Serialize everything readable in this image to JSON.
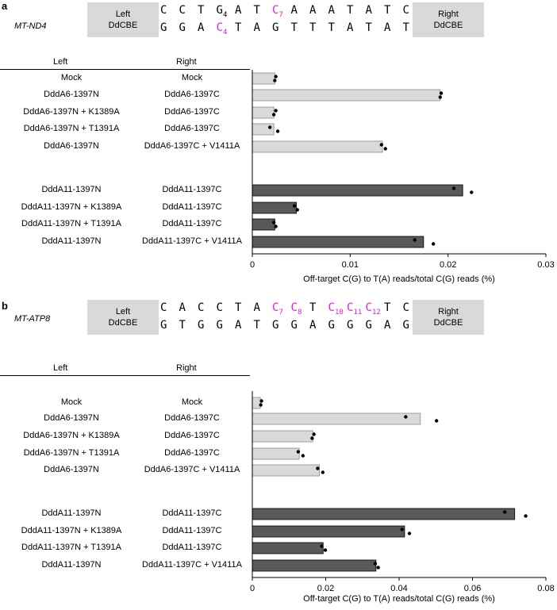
{
  "colors": {
    "highlight": "#e020e0",
    "light_bar": "#d9d9d9",
    "dark_bar": "#595959",
    "box": "#d9d9d9"
  },
  "panel_a": {
    "label": "a",
    "gene": "MT-ND4",
    "left_box": [
      "Left",
      "DdCBE"
    ],
    "right_box": [
      "Right",
      "DdCBE"
    ],
    "top_strand": [
      {
        "b": "C",
        "s": "",
        "h": false
      },
      {
        "b": "C",
        "s": "",
        "h": false
      },
      {
        "b": "T",
        "s": "",
        "h": false
      },
      {
        "b": "G",
        "s": "4",
        "h": false
      },
      {
        "b": "A",
        "s": "",
        "h": false
      },
      {
        "b": "T",
        "s": "",
        "h": false
      },
      {
        "b": "C",
        "s": "7",
        "h": true
      },
      {
        "b": "A",
        "s": "",
        "h": false
      },
      {
        "b": "A",
        "s": "",
        "h": false
      },
      {
        "b": "A",
        "s": "",
        "h": false
      },
      {
        "b": "T",
        "s": "",
        "h": false
      },
      {
        "b": "A",
        "s": "",
        "h": false
      },
      {
        "b": "T",
        "s": "",
        "h": false
      },
      {
        "b": "C",
        "s": "",
        "h": false
      }
    ],
    "bottom_strand": [
      {
        "b": "G",
        "s": "",
        "h": false
      },
      {
        "b": "G",
        "s": "",
        "h": false
      },
      {
        "b": "A",
        "s": "",
        "h": false
      },
      {
        "b": "C",
        "s": "4",
        "h": true
      },
      {
        "b": "T",
        "s": "",
        "h": false
      },
      {
        "b": "A",
        "s": "",
        "h": false
      },
      {
        "b": "G",
        "s": "",
        "h": false
      },
      {
        "b": "T",
        "s": "",
        "h": false
      },
      {
        "b": "T",
        "s": "",
        "h": false
      },
      {
        "b": "T",
        "s": "",
        "h": false
      },
      {
        "b": "A",
        "s": "",
        "h": false
      },
      {
        "b": "T",
        "s": "",
        "h": false
      },
      {
        "b": "A",
        "s": "",
        "h": false
      },
      {
        "b": "T",
        "s": "",
        "h": false
      }
    ],
    "header_left": "Left",
    "header_right": "Right"
  },
  "panel_b": {
    "label": "b",
    "gene": "MT-ATP8",
    "left_box": [
      "Left",
      "DdCBE"
    ],
    "right_box": [
      "Right",
      "DdCBE"
    ],
    "top_strand": [
      {
        "b": "C",
        "s": "",
        "h": false
      },
      {
        "b": "A",
        "s": "",
        "h": false
      },
      {
        "b": "C",
        "s": "",
        "h": false
      },
      {
        "b": "C",
        "s": "",
        "h": false
      },
      {
        "b": "T",
        "s": "",
        "h": false
      },
      {
        "b": "A",
        "s": "",
        "h": false
      },
      {
        "b": "C",
        "s": "7",
        "h": true
      },
      {
        "b": "C",
        "s": "8",
        "h": true
      },
      {
        "b": "T",
        "s": "",
        "h": false
      },
      {
        "b": "C",
        "s": "10",
        "h": true
      },
      {
        "b": "C",
        "s": "11",
        "h": true
      },
      {
        "b": "C",
        "s": "12",
        "h": true
      },
      {
        "b": "T",
        "s": "",
        "h": false
      },
      {
        "b": "C",
        "s": "",
        "h": false
      }
    ],
    "bottom_strand": [
      {
        "b": "G",
        "s": "",
        "h": false
      },
      {
        "b": "T",
        "s": "",
        "h": false
      },
      {
        "b": "G",
        "s": "",
        "h": false
      },
      {
        "b": "G",
        "s": "",
        "h": false
      },
      {
        "b": "A",
        "s": "",
        "h": false
      },
      {
        "b": "T",
        "s": "",
        "h": false
      },
      {
        "b": "G",
        "s": "",
        "h": false
      },
      {
        "b": "G",
        "s": "",
        "h": false
      },
      {
        "b": "A",
        "s": "",
        "h": false
      },
      {
        "b": "G",
        "s": "",
        "h": false
      },
      {
        "b": "G",
        "s": "",
        "h": false
      },
      {
        "b": "G",
        "s": "",
        "h": false
      },
      {
        "b": "A",
        "s": "",
        "h": false
      },
      {
        "b": "G",
        "s": "",
        "h": false
      }
    ],
    "header_left": "Left",
    "header_right": "Right"
  },
  "chart_data": [
    {
      "type": "bar",
      "orientation": "horizontal",
      "panel": "a",
      "xlabel": "Off-target C(G) to T(A) reads/total C(G) reads (%)",
      "xlim": [
        0,
        0.03
      ],
      "xticks": [
        0,
        0.01,
        0.02,
        0.03
      ],
      "xtick_labels": [
        "0",
        "0.01",
        "0.02",
        "0.03"
      ],
      "rows": [
        {
          "left": "Mock",
          "right": "Mock",
          "value": 0.0023,
          "points": [
            0.0024,
            0.0023
          ],
          "group": "light"
        },
        {
          "left": "DddA6-1397N",
          "right": "DddA6-1397C",
          "value": 0.0192,
          "points": [
            0.0193,
            0.0192
          ],
          "group": "light"
        },
        {
          "left": "DddA6-1397N + K1389A",
          "right": "DddA6-1397C",
          "value": 0.0022,
          "points": [
            0.0024,
            0.0022
          ],
          "group": "light"
        },
        {
          "left": "DddA6-1397N + T1391A",
          "right": "DddA6-1397C",
          "value": 0.0022,
          "points": [
            0.0018,
            0.0026
          ],
          "group": "light"
        },
        {
          "left": "DddA6-1397N",
          "right": "DddA6-1397C + V1411A",
          "value": 0.0133,
          "points": [
            0.0132,
            0.0136
          ],
          "group": "light"
        },
        {
          "left": "DddA11-1397N",
          "right": "DddA11-1397C",
          "value": 0.0215,
          "points": [
            0.0206,
            0.0224
          ],
          "group": "dark"
        },
        {
          "left": "DddA11-1397N + K1389A",
          "right": "DddA11-1397C",
          "value": 0.0045,
          "points": [
            0.0043,
            0.0046
          ],
          "group": "dark"
        },
        {
          "left": "DddA11-1397N + T1391A",
          "right": "DddA11-1397C",
          "value": 0.0023,
          "points": [
            0.0022,
            0.0024
          ],
          "group": "dark"
        },
        {
          "left": "DddA11-1397N",
          "right": "DddA11-1397C + V1411A",
          "value": 0.0175,
          "points": [
            0.0166,
            0.0185
          ],
          "group": "dark"
        }
      ]
    },
    {
      "type": "bar",
      "orientation": "horizontal",
      "panel": "b",
      "xlabel": "Off-target C(G) to T(A) reads/total C(G) reads (%)",
      "xlim": [
        0,
        0.08
      ],
      "xticks": [
        0,
        0.02,
        0.04,
        0.06,
        0.08
      ],
      "xtick_labels": [
        "0",
        "0.02",
        "0.04",
        "0.06",
        "0.08"
      ],
      "rows": [
        {
          "left": "Mock",
          "right": "Mock",
          "value": 0.0022,
          "points": [
            0.0025,
            0.0023
          ],
          "group": "light"
        },
        {
          "left": "DddA6-1397N",
          "right": "DddA6-1397C",
          "value": 0.0458,
          "points": [
            0.0418,
            0.0502
          ],
          "group": "light"
        },
        {
          "left": "DddA6-1397N + K1389A",
          "right": "DddA6-1397C",
          "value": 0.0165,
          "points": [
            0.0168,
            0.0163
          ],
          "group": "light"
        },
        {
          "left": "DddA6-1397N + T1391A",
          "right": "DddA6-1397C",
          "value": 0.0128,
          "points": [
            0.0125,
            0.0138
          ],
          "group": "light"
        },
        {
          "left": "DddA6-1397N",
          "right": "DddA6-1397C + V1411A",
          "value": 0.0183,
          "points": [
            0.0178,
            0.0192
          ],
          "group": "light"
        },
        {
          "left": "DddA11-1397N",
          "right": "DddA11-1397C",
          "value": 0.0715,
          "points": [
            0.0688,
            0.0745
          ],
          "group": "dark"
        },
        {
          "left": "DddA11-1397N + K1389A",
          "right": "DddA11-1397C",
          "value": 0.0415,
          "points": [
            0.0408,
            0.0428
          ],
          "group": "dark"
        },
        {
          "left": "DddA11-1397N + T1391A",
          "right": "DddA11-1397C",
          "value": 0.0193,
          "points": [
            0.0189,
            0.0199
          ],
          "group": "dark"
        },
        {
          "left": "DddA11-1397N",
          "right": "DddA11-1397C + V1411A",
          "value": 0.0337,
          "points": [
            0.0335,
            0.0343
          ],
          "group": "dark"
        }
      ]
    }
  ]
}
